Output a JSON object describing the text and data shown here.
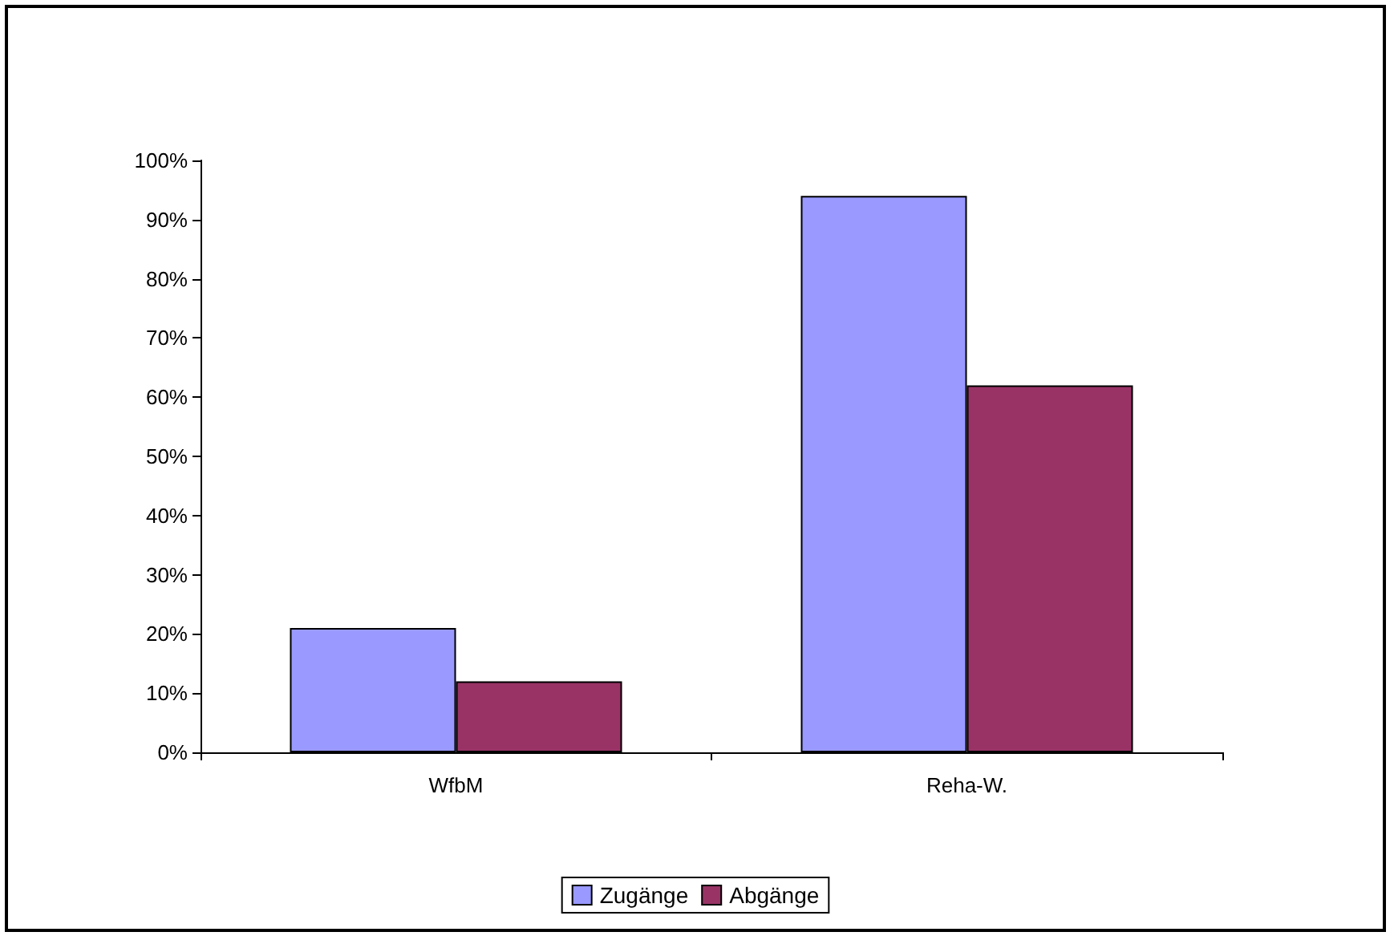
{
  "chart_data": {
    "type": "bar",
    "categories": [
      "WfbM",
      "Reha-W."
    ],
    "series": [
      {
        "name": "Zugänge",
        "color": "#9999ff",
        "values": [
          21,
          94
        ]
      },
      {
        "name": "Abgänge",
        "color": "#993366",
        "values": [
          12,
          62
        ]
      }
    ],
    "ylim": [
      0,
      100
    ],
    "yticks": [
      {
        "value": 0,
        "label": "0%"
      },
      {
        "value": 10,
        "label": "10%"
      },
      {
        "value": 20,
        "label": "20%"
      },
      {
        "value": 30,
        "label": "30%"
      },
      {
        "value": 40,
        "label": "40%"
      },
      {
        "value": 50,
        "label": "50%"
      },
      {
        "value": 60,
        "label": "60%"
      },
      {
        "value": 70,
        "label": "70%"
      },
      {
        "value": 80,
        "label": "80%"
      },
      {
        "value": 90,
        "label": "90%"
      },
      {
        "value": 100,
        "label": "100%"
      }
    ],
    "grid": false,
    "legend": "bottom"
  }
}
